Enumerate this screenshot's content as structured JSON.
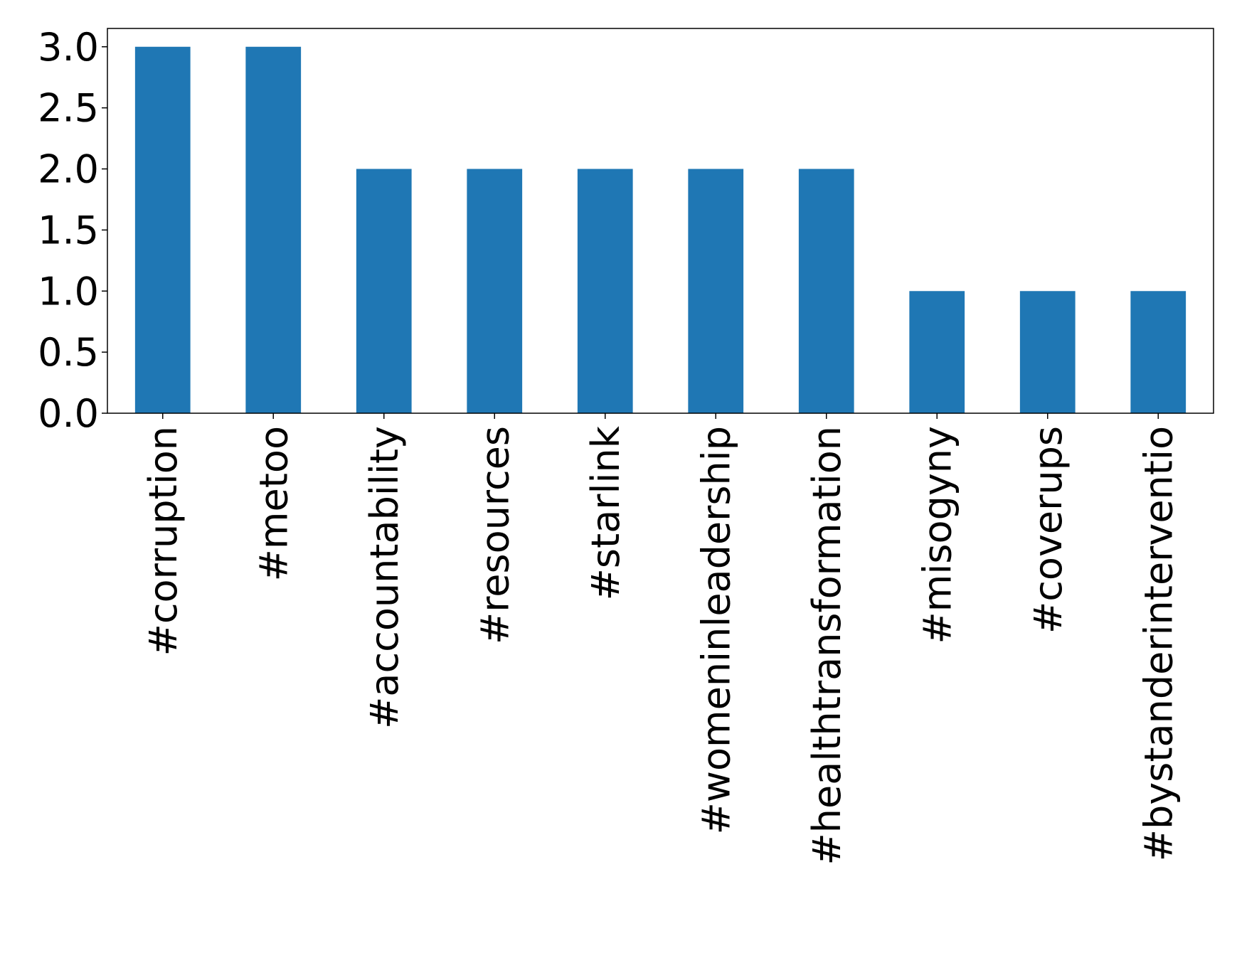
{
  "chart_data": {
    "type": "bar",
    "title": "",
    "xlabel": "",
    "ylabel": "",
    "categories": [
      "#corruption",
      "#metoo",
      "#accountability",
      "#resources",
      "#starlink",
      "#womeninleadership",
      "#healthtransformation",
      "#misogyny",
      "#coverups",
      "#bystanderinterventio"
    ],
    "values": [
      3,
      3,
      2,
      2,
      2,
      2,
      2,
      1,
      1,
      1
    ],
    "ylim": [
      0,
      3.15
    ],
    "yticks": [
      "0.0",
      "0.5",
      "1.0",
      "1.5",
      "2.0",
      "2.5",
      "3.0"
    ],
    "grid": false,
    "legend": "none",
    "colors": {
      "bar": "#1f77b4",
      "axis": "#000000"
    }
  }
}
